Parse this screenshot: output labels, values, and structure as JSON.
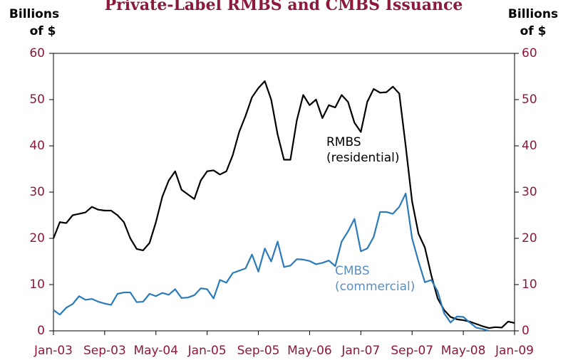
{
  "chart_data": {
    "type": "line",
    "title": "Private-Label RMBS and CMBS Issuance",
    "ylabel": [
      "Billions",
      "of $"
    ],
    "y2label": [
      "Billions",
      "of $"
    ],
    "categories": [
      "Jan-03",
      null,
      null,
      null,
      null,
      null,
      null,
      null,
      "Sep-03",
      null,
      null,
      null,
      null,
      null,
      null,
      null,
      "May-04",
      null,
      null,
      null,
      null,
      null,
      null,
      null,
      "Jan-05",
      null,
      null,
      null,
      null,
      null,
      null,
      null,
      "Sep-05",
      null,
      null,
      null,
      null,
      null,
      null,
      null,
      "May-06",
      null,
      null,
      null,
      null,
      null,
      null,
      null,
      "Jan-07",
      null,
      null,
      null,
      null,
      null,
      null,
      null,
      "Sep-07",
      null,
      null,
      null,
      null,
      null,
      null,
      null,
      "May-08",
      null,
      null,
      null,
      null,
      null,
      null,
      null,
      "Jan-09"
    ],
    "series": [
      {
        "name": "RMBS",
        "description": "(residential)",
        "color": "#000000",
        "values": [
          20,
          23.5,
          23.3,
          25,
          25.3,
          25.6,
          26.8,
          26.2,
          26,
          26,
          25,
          23.5,
          20,
          17.7,
          17.4,
          19,
          23.5,
          29,
          32.5,
          34.5,
          30.5,
          29.5,
          28.5,
          32.5,
          34.5,
          34.7,
          33.8,
          34.5,
          38,
          43,
          46.5,
          50.5,
          52.5,
          54,
          50,
          42.5,
          37,
          37,
          45.5,
          51,
          48.8,
          50,
          46,
          48.8,
          48.3,
          51,
          49.5,
          45,
          43,
          49.5,
          52.3,
          51.5,
          51.6,
          52.8,
          51.3,
          40,
          28,
          21,
          18,
          12,
          7,
          4.5,
          3,
          2.5,
          2.3,
          2,
          1.5,
          1,
          0.6,
          0.8,
          0.7,
          2,
          1.7
        ]
      },
      {
        "name": "CMBS",
        "description": "(commercial)",
        "color": "#2b7bba",
        "values": [
          4.5,
          3.5,
          5,
          5.8,
          7.5,
          6.7,
          6.9,
          6.3,
          5.9,
          5.6,
          8,
          8.3,
          8.3,
          6.2,
          6.3,
          8,
          7.5,
          8.2,
          7.8,
          9,
          7.1,
          7.2,
          7.7,
          9.2,
          9,
          7,
          11,
          10.4,
          12.5,
          13,
          13.5,
          16.5,
          12.8,
          17.8,
          15,
          19.3,
          13.8,
          14.1,
          15.5,
          15.4,
          15.1,
          14.4,
          14.7,
          15.2,
          14,
          19.3,
          21.5,
          24.2,
          17.2,
          17.8,
          20.3,
          25.7,
          25.7,
          25.3,
          26.8,
          29.7,
          20,
          15,
          10.5,
          11,
          8.5,
          3.8,
          1.8,
          3.1,
          3,
          1.8,
          0.7,
          0.4,
          0,
          null,
          null,
          null,
          null
        ]
      }
    ],
    "ylim": [
      0,
      60
    ],
    "yticks": [
      0,
      10,
      20,
      30,
      40,
      50,
      60
    ],
    "y2lim": [
      0,
      60
    ],
    "y2ticks": [
      0,
      10,
      20,
      30,
      40,
      50,
      60
    ]
  }
}
